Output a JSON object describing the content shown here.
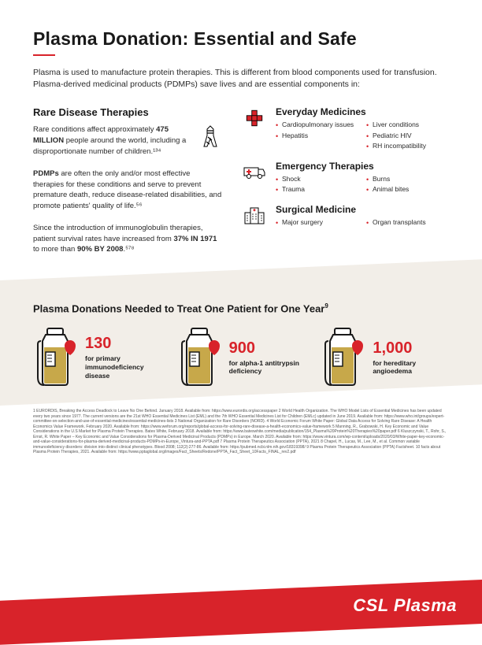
{
  "colors": {
    "accent": "#d8232a",
    "text": "#1a1a1a",
    "band_bg": "#f2eee8",
    "bottle_fill": "#c7a84a",
    "bottle_stroke": "#1a1a1a"
  },
  "title": "Plasma Donation: Essential and Safe",
  "intro": "Plasma is used to manufacture protein therapies. This is different from blood components used for transfusion. Plasma-derived medicinal products (PDMPs) save lives and are essential components in:",
  "rare": {
    "heading": "Rare Disease Therapies",
    "p1_a": "Rare conditions affect approximately ",
    "p1_b": "475 MILLION",
    "p1_c": " people around the world, including a disproportionate number of children.¹³⁴",
    "p2_a": "PDMPs",
    "p2_b": " are often the only and/or most effective therapies for these conditions and serve to prevent premature death, reduce disease-related disabilities, and promote patients' quality of life.⁵⁶",
    "p3_a": "Since the introduction of immunoglobulin therapies, patient survival rates have increased from ",
    "p3_b": "37% IN 1971",
    "p3_c": " to more than ",
    "p3_d": "90% BY 2008",
    "p3_e": ".⁵⁷⁸"
  },
  "categories": [
    {
      "heading": "Everyday Medicines",
      "icon": "cross",
      "items": [
        "Cardiopulmonary issues",
        "Liver conditions",
        "Hepatitis",
        "Pediatric HIV",
        "",
        "RH incompatibility"
      ]
    },
    {
      "heading": "Emergency Therapies",
      "icon": "ambulance",
      "items": [
        "Shock",
        "Burns",
        "Trauma",
        "Animal bites"
      ]
    },
    {
      "heading": "Surgical Medicine",
      "icon": "hospital",
      "items": [
        "Major surgery",
        "Organ transplants"
      ]
    }
  ],
  "chart": {
    "title": "Plasma Donations Needed to Treat One Patient for One Year",
    "super": "9",
    "entries": [
      {
        "num": "130",
        "label": "for primary immunodeficiency disease"
      },
      {
        "num": "900",
        "label": "for alpha-1 antitrypsin deficiency"
      },
      {
        "num": "1,000",
        "label": "for hereditary angioedema"
      }
    ]
  },
  "refs": "1 EURORDIS, Breaking the Access Deadlock to Leave No One Behind. January 2018. Available from: https://www.eurordis.org/accesspaper  2 World Health Organization. The WHO Model Lists of Essential Medicines has been updated every two years since 1977. The current versions are the 21st WHO Essential Medicines List (EML) and the 7th WHO Essential Medicines List for Children (EMLc) updated in June 2019. Available from: https://www.who.int/groups/expert-committee-on-selection-and-use-of-essential-medicines/essential-medicines-lists  3 National Organization for Rare Disorders (NORD).  4 World Economic Forum White Paper: Global Data Access for Solving Rare Disease: A Health Economics Value Framework. February 2020. Available from: https://www.weforum.org/reports/global-access-for-solving-rare-disease-a-health-economics-value-framework  5 Manning, R., Grabowski, H. Key Economic and Value Considerations in the U.S Market for Plasma Protein Therapies. Bates White, February 2018. Available from: https://www.bateswhite.com/media/publication/154_Plasma%20Protein%20Therapies%20paper.pdf  6 Kluszczynski, T., Rohr, S., Ernst, R. White Paper – Key Economic and Value Considerations for Plasma-Derived Medicinal Products (PDMPs) in Europe. March 2020. Available from: https://www.vintura.com/wp-content/uploads/2020/03/White-paper-key-economic-and-value-considerations-for-plasma-derived-medicinal-products-PDMPs-in-Europe_Vintura-and-PPTA.pdf  7 Plasma Protein Therapeutics Association (PPTA), 2021  8 Chapel, H., Lucas, M., Lee, M., et al. Common variable immunodeficiency disorders: division into distinct clinical phenotypes. Blood 2008; 112(2):277-86. Available from: https://pubmed.ncbi.nlm.nih.gov/18319398/  9 Plasma Protein Therapeutics Association (PPTA) Factsheet. 10 facts about Plasma Protein Therapies, 2021. Available from: https://www.pptaglobal.org/images/Fact_Sheets/Redone/PPTA_Fact_Sheet_10Facts_FINAL_rev2.pdf",
  "logo": "CSL Plasma"
}
